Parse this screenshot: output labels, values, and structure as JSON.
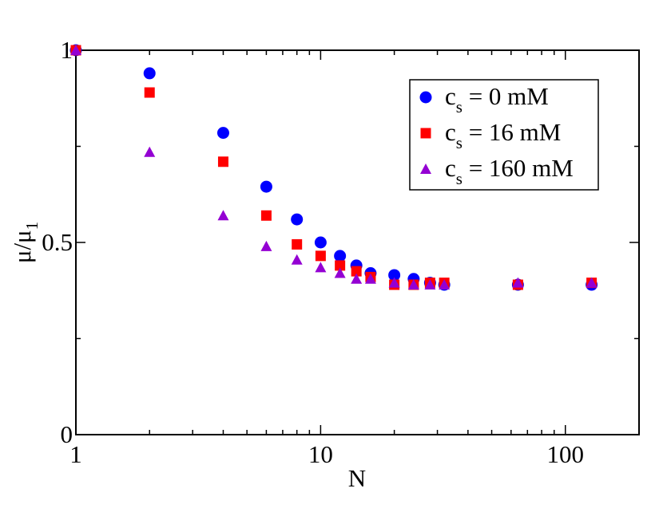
{
  "chart_data": {
    "type": "scatter",
    "title": "",
    "xlabel": "N",
    "ylabel": "μ/μ",
    "ylabel_subscript": "1",
    "xscale": "log",
    "xlim": [
      1,
      200
    ],
    "ylim": [
      0,
      1
    ],
    "x_ticks": [
      {
        "value": 1,
        "label": "1"
      },
      {
        "value": 10,
        "label": "10"
      },
      {
        "value": 100,
        "label": "100"
      }
    ],
    "y_ticks": [
      {
        "value": 0,
        "label": "0"
      },
      {
        "value": 0.5,
        "label": "0.5"
      },
      {
        "value": 1,
        "label": "1"
      }
    ],
    "y_minor_ticks": [
      0.25,
      0.75
    ],
    "grid": false,
    "legend_position": "top-right",
    "series": [
      {
        "name": "c = 0 mM",
        "prefix": "c",
        "subscript": "s",
        "suffix": " = 0 mM",
        "marker": "circle",
        "color": "#0000ff",
        "x": [
          1,
          2,
          4,
          6,
          8,
          10,
          12,
          14,
          16,
          20,
          24,
          28,
          32,
          64,
          128
        ],
        "y": [
          1.0,
          0.94,
          0.785,
          0.645,
          0.56,
          0.5,
          0.465,
          0.44,
          0.42,
          0.415,
          0.405,
          0.395,
          0.39,
          0.39,
          0.39
        ]
      },
      {
        "name": "c = 16 mM",
        "prefix": "c",
        "subscript": "s",
        "suffix": " = 16 mM",
        "marker": "square",
        "color": "#ff0000",
        "x": [
          1,
          2,
          4,
          6,
          8,
          10,
          12,
          14,
          16,
          20,
          24,
          28,
          32,
          64,
          128
        ],
        "y": [
          1.0,
          0.89,
          0.71,
          0.57,
          0.495,
          0.465,
          0.44,
          0.425,
          0.41,
          0.39,
          0.39,
          0.395,
          0.395,
          0.39,
          0.395
        ]
      },
      {
        "name": "c = 160 mM",
        "prefix": "c",
        "subscript": "s",
        "suffix": " = 160 mM",
        "marker": "triangle",
        "color": "#9400d3",
        "x": [
          1,
          2,
          4,
          6,
          8,
          10,
          12,
          14,
          16,
          20,
          24,
          28,
          32,
          64,
          128
        ],
        "y": [
          1.0,
          0.735,
          0.57,
          0.49,
          0.455,
          0.435,
          0.42,
          0.405,
          0.405,
          0.395,
          0.39,
          0.39,
          0.39,
          0.395,
          0.395
        ]
      }
    ]
  }
}
